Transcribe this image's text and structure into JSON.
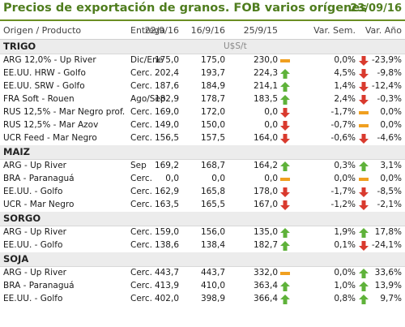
{
  "title": "Precios de exportación de granos. FOB varios orígenes",
  "date": "23/09/16",
  "headers": {
    "origin": "Origen / Producto",
    "delivery": "Entrega",
    "d1": "22/9/16",
    "d2": "16/9/16",
    "d3": "25/9/15",
    "var_sem": "Var. Sem.",
    "var_ano": "Var. Año"
  },
  "colors": {
    "up": "#5fb23a",
    "down": "#d93a2e",
    "flat": "#f0a020",
    "accent": "#4f7d1e"
  },
  "sections": [
    {
      "name": "TRIGO",
      "unit": "U$S/t",
      "rows": [
        {
          "origin": "ARG 12,0% - Up River",
          "delivery": "Dic/Ene",
          "v1": "175,0",
          "v2": "175,0",
          "v3": "230,0",
          "ar1": "flat",
          "sem": "0,0%",
          "ar2": "down",
          "ano": "-23,9%"
        },
        {
          "origin": "EE.UU. HRW - Golfo",
          "delivery": "Cerc.",
          "v1": "202,4",
          "v2": "193,7",
          "v3": "224,3",
          "ar1": "up",
          "sem": "4,5%",
          "ar2": "down",
          "ano": "-9,8%"
        },
        {
          "origin": "EE.UU. SRW - Golfo",
          "delivery": "Cerc.",
          "v1": "187,6",
          "v2": "184,9",
          "v3": "214,1",
          "ar1": "up",
          "sem": "1,4%",
          "ar2": "down",
          "ano": "-12,4%"
        },
        {
          "origin": "FRA Soft - Rouen",
          "delivery": "Ago/Sep",
          "v1": "182,9",
          "v2": "178,7",
          "v3": "183,5",
          "ar1": "up",
          "sem": "2,4%",
          "ar2": "down",
          "ano": "-0,3%"
        },
        {
          "origin": "RUS 12,5% - Mar Negro prof.",
          "delivery": "Cerc.",
          "v1": "169,0",
          "v2": "172,0",
          "v3": "0,0",
          "ar1": "down",
          "sem": "-1,7%",
          "ar2": "flat",
          "ano": "0,0%"
        },
        {
          "origin": "RUS 12,5% - Mar Azov",
          "delivery": "Cerc.",
          "v1": "149,0",
          "v2": "150,0",
          "v3": "0,0",
          "ar1": "down",
          "sem": "-0,7%",
          "ar2": "flat",
          "ano": "0,0%"
        },
        {
          "origin": "UCR Feed - Mar Negro",
          "delivery": "Cerc.",
          "v1": "156,5",
          "v2": "157,5",
          "v3": "164,0",
          "ar1": "down",
          "sem": "-0,6%",
          "ar2": "down",
          "ano": "-4,6%"
        }
      ]
    },
    {
      "name": "MAIZ",
      "unit": "",
      "rows": [
        {
          "origin": "ARG - Up River",
          "delivery": "Sep",
          "v1": "169,2",
          "v2": "168,7",
          "v3": "164,2",
          "ar1": "up",
          "sem": "0,3%",
          "ar2": "up",
          "ano": "3,1%"
        },
        {
          "origin": "BRA - Paranaguá",
          "delivery": "Cerc.",
          "v1": "0,0",
          "v2": "0,0",
          "v3": "0,0",
          "ar1": "flat",
          "sem": "0,0%",
          "ar2": "flat",
          "ano": "0,0%"
        },
        {
          "origin": "EE.UU. - Golfo",
          "delivery": "Cerc.",
          "v1": "162,9",
          "v2": "165,8",
          "v3": "178,0",
          "ar1": "down",
          "sem": "-1,7%",
          "ar2": "down",
          "ano": "-8,5%"
        },
        {
          "origin": "UCR - Mar Negro",
          "delivery": "Cerc.",
          "v1": "163,5",
          "v2": "165,5",
          "v3": "167,0",
          "ar1": "down",
          "sem": "-1,2%",
          "ar2": "down",
          "ano": "-2,1%"
        }
      ]
    },
    {
      "name": "SORGO",
      "unit": "",
      "rows": [
        {
          "origin": "ARG - Up River",
          "delivery": "Cerc.",
          "v1": "159,0",
          "v2": "156,0",
          "v3": "135,0",
          "ar1": "up",
          "sem": "1,9%",
          "ar2": "up",
          "ano": "17,8%"
        },
        {
          "origin": "EE.UU. - Golfo",
          "delivery": "Cerc.",
          "v1": "138,6",
          "v2": "138,4",
          "v3": "182,7",
          "ar1": "up",
          "sem": "0,1%",
          "ar2": "down",
          "ano": "-24,1%"
        }
      ]
    },
    {
      "name": "SOJA",
      "unit": "",
      "rows": [
        {
          "origin": "ARG - Up River",
          "delivery": "Cerc.",
          "v1": "443,7",
          "v2": "443,7",
          "v3": "332,0",
          "ar1": "flat",
          "sem": "0,0%",
          "ar2": "up",
          "ano": "33,6%"
        },
        {
          "origin": "BRA - Paranaguá",
          "delivery": "Cerc.",
          "v1": "413,9",
          "v2": "410,0",
          "v3": "363,4",
          "ar1": "up",
          "sem": "1,0%",
          "ar2": "up",
          "ano": "13,9%"
        },
        {
          "origin": "EE.UU. - Golfo",
          "delivery": "Cerc.",
          "v1": "402,0",
          "v2": "398,9",
          "v3": "366,4",
          "ar1": "up",
          "sem": "0,8%",
          "ar2": "up",
          "ano": "9,7%"
        }
      ]
    }
  ]
}
